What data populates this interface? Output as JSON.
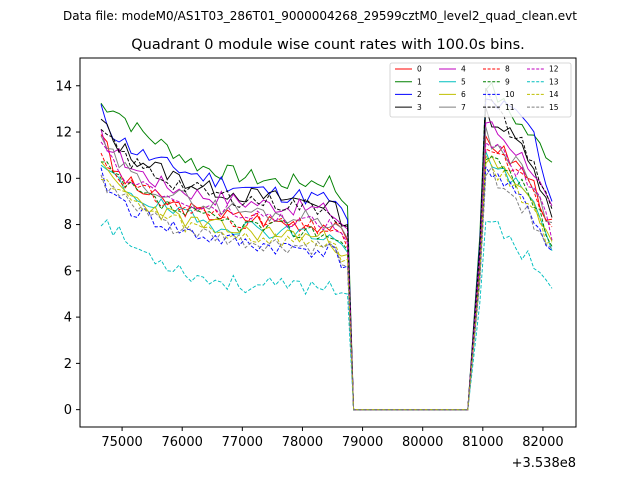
{
  "suptitle": "Data file: modeM0/AS1T03_286T01_9000004268_29599cztM0_level2_quad_clean.evt",
  "title": "Quadrant 0 module wise count rates with 100.0s bins.",
  "chart_data": {
    "type": "line",
    "title": "Quadrant 0 module wise count rates with 100.0s bins.",
    "xlabel": "",
    "ylabel": "",
    "x_offset_label": "+3.538e8",
    "xlim": [
      74300,
      82550
    ],
    "ylim": [
      -0.75,
      15.2
    ],
    "xticks": [
      75000,
      76000,
      77000,
      78000,
      79000,
      80000,
      81000,
      82000
    ],
    "xtick_labels": [
      "75000",
      "76000",
      "77000",
      "78000",
      "79000",
      "80000",
      "81000",
      "82000"
    ],
    "yticks": [
      0,
      2,
      4,
      6,
      8,
      10,
      12,
      14
    ],
    "ytick_labels": [
      "0",
      "2",
      "4",
      "6",
      "8",
      "10",
      "12",
      "14"
    ],
    "grid": false,
    "legend_position": "top-right",
    "bin_size_s": 100,
    "segments_x": {
      "seg1": [
        74650,
        82150
      ],
      "gap": [
        78850,
        80750
      ]
    },
    "series": [
      {
        "name": "0",
        "color": "#ff0000",
        "dashed": false,
        "seed": 3,
        "anchors": [
          [
            74650,
            12.1
          ],
          [
            74850,
            10.4
          ],
          [
            75200,
            9.6
          ],
          [
            75700,
            9.0
          ],
          [
            76300,
            8.5
          ],
          [
            77000,
            8.3
          ],
          [
            77700,
            8.1
          ],
          [
            78450,
            8.0
          ],
          [
            78750,
            7.3
          ],
          [
            78850,
            0
          ],
          [
            80750,
            0
          ],
          [
            80950,
            6.5
          ],
          [
            81000,
            11.9
          ],
          [
            81400,
            11.0
          ],
          [
            81800,
            10.0
          ],
          [
            82150,
            7.9
          ]
        ]
      },
      {
        "name": "1",
        "color": "#008000",
        "dashed": false,
        "seed": 7,
        "anchors": [
          [
            74650,
            13.2
          ],
          [
            74850,
            13.1
          ],
          [
            75200,
            12.2
          ],
          [
            75700,
            11.4
          ],
          [
            76300,
            10.5
          ],
          [
            77000,
            10.1
          ],
          [
            77700,
            9.8
          ],
          [
            78450,
            9.9
          ],
          [
            78750,
            8.8
          ],
          [
            78850,
            0
          ],
          [
            80750,
            0
          ],
          [
            80950,
            7.5
          ],
          [
            81000,
            14.3
          ],
          [
            81400,
            13.0
          ],
          [
            81800,
            11.8
          ],
          [
            82150,
            10.9
          ]
        ]
      },
      {
        "name": "2",
        "color": "#0000ff",
        "dashed": false,
        "seed": 11,
        "anchors": [
          [
            74650,
            12.9
          ],
          [
            74850,
            12.0
          ],
          [
            75200,
            11.2
          ],
          [
            75700,
            10.6
          ],
          [
            76300,
            10.1
          ],
          [
            77000,
            9.6
          ],
          [
            77700,
            9.3
          ],
          [
            78450,
            9.1
          ],
          [
            78750,
            8.2
          ],
          [
            78850,
            0
          ],
          [
            80750,
            0
          ],
          [
            80950,
            7.2
          ],
          [
            81000,
            13.4
          ],
          [
            81400,
            13.0
          ],
          [
            81800,
            12.3
          ],
          [
            82150,
            9.0
          ]
        ]
      },
      {
        "name": "3",
        "color": "#000000",
        "dashed": false,
        "seed": 13,
        "anchors": [
          [
            74650,
            12.5
          ],
          [
            74850,
            11.6
          ],
          [
            75200,
            10.9
          ],
          [
            75700,
            10.3
          ],
          [
            76300,
            9.6
          ],
          [
            77000,
            9.3
          ],
          [
            77700,
            9.1
          ],
          [
            78450,
            8.9
          ],
          [
            78750,
            8.0
          ],
          [
            78850,
            0
          ],
          [
            80750,
            0
          ],
          [
            80950,
            7.0
          ],
          [
            81000,
            12.9
          ],
          [
            81400,
            12.0
          ],
          [
            81800,
            11.0
          ],
          [
            82150,
            8.2
          ]
        ]
      },
      {
        "name": "4",
        "color": "#bf00bf",
        "dashed": false,
        "seed": 17,
        "anchors": [
          [
            74650,
            11.8
          ],
          [
            74850,
            11.2
          ],
          [
            75200,
            10.4
          ],
          [
            75700,
            9.7
          ],
          [
            76300,
            9.3
          ],
          [
            77000,
            9.0
          ],
          [
            77700,
            8.8
          ],
          [
            78450,
            8.6
          ],
          [
            78750,
            7.8
          ],
          [
            78850,
            0
          ],
          [
            80750,
            0
          ],
          [
            80950,
            6.8
          ],
          [
            81000,
            12.6
          ],
          [
            81400,
            11.6
          ],
          [
            81800,
            10.6
          ],
          [
            82150,
            8.5
          ]
        ]
      },
      {
        "name": "5",
        "color": "#00bfbf",
        "dashed": false,
        "seed": 19,
        "anchors": [
          [
            74650,
            10.5
          ],
          [
            74850,
            10.0
          ],
          [
            75200,
            9.3
          ],
          [
            75700,
            8.7
          ],
          [
            76300,
            8.1
          ],
          [
            77000,
            7.9
          ],
          [
            77700,
            7.7
          ],
          [
            78450,
            7.5
          ],
          [
            78750,
            6.8
          ],
          [
            78850,
            0
          ],
          [
            80750,
            0
          ],
          [
            80950,
            6.0
          ],
          [
            81000,
            11.2
          ],
          [
            81400,
            10.0
          ],
          [
            81800,
            9.1
          ],
          [
            82150,
            7.2
          ]
        ]
      },
      {
        "name": "6",
        "color": "#bfbf00",
        "dashed": false,
        "seed": 23,
        "anchors": [
          [
            74650,
            10.4
          ],
          [
            74850,
            9.9
          ],
          [
            75200,
            9.1
          ],
          [
            75700,
            8.5
          ],
          [
            76300,
            8.0
          ],
          [
            77000,
            7.7
          ],
          [
            77700,
            7.6
          ],
          [
            78450,
            7.4
          ],
          [
            78750,
            6.7
          ],
          [
            78850,
            0
          ],
          [
            80750,
            0
          ],
          [
            80950,
            5.9
          ],
          [
            81000,
            11.0
          ],
          [
            81400,
            10.1
          ],
          [
            81800,
            9.0
          ],
          [
            82150,
            7.4
          ]
        ]
      },
      {
        "name": "7",
        "color": "#7f7f7f",
        "dashed": false,
        "seed": 29,
        "anchors": [
          [
            74650,
            11.5
          ],
          [
            74850,
            10.9
          ],
          [
            75200,
            10.0
          ],
          [
            75700,
            9.4
          ],
          [
            76300,
            8.9
          ],
          [
            77000,
            8.6
          ],
          [
            77700,
            8.4
          ],
          [
            78450,
            8.2
          ],
          [
            78750,
            7.4
          ],
          [
            78850,
            0
          ],
          [
            80750,
            0
          ],
          [
            80950,
            6.6
          ],
          [
            81000,
            12.0
          ],
          [
            81400,
            11.0
          ],
          [
            81800,
            10.0
          ],
          [
            82150,
            7.9
          ]
        ]
      },
      {
        "name": "8",
        "color": "#ff0000",
        "dashed": true,
        "seed": 31,
        "anchors": [
          [
            74650,
            11.0
          ],
          [
            74850,
            10.4
          ],
          [
            75200,
            9.6
          ],
          [
            75700,
            9.0
          ],
          [
            76300,
            8.5
          ],
          [
            77000,
            8.2
          ],
          [
            77700,
            8.0
          ],
          [
            78450,
            7.8
          ],
          [
            78750,
            7.0
          ],
          [
            78850,
            0
          ],
          [
            80750,
            0
          ],
          [
            80950,
            6.3
          ],
          [
            81000,
            11.6
          ],
          [
            81400,
            10.6
          ],
          [
            81800,
            9.6
          ],
          [
            82150,
            7.6
          ]
        ]
      },
      {
        "name": "9",
        "color": "#008000",
        "dashed": true,
        "seed": 37,
        "anchors": [
          [
            74650,
            10.6
          ],
          [
            74850,
            10.1
          ],
          [
            75200,
            9.4
          ],
          [
            75700,
            8.8
          ],
          [
            76300,
            8.3
          ],
          [
            77000,
            8.0
          ],
          [
            77700,
            7.8
          ],
          [
            78450,
            7.6
          ],
          [
            78750,
            6.9
          ],
          [
            78850,
            0
          ],
          [
            80750,
            0
          ],
          [
            80950,
            6.1
          ],
          [
            81000,
            11.3
          ],
          [
            81400,
            10.3
          ],
          [
            81800,
            9.3
          ],
          [
            82150,
            7.2
          ]
        ]
      },
      {
        "name": "10",
        "color": "#0000ff",
        "dashed": true,
        "seed": 41,
        "anchors": [
          [
            74650,
            10.1
          ],
          [
            74850,
            9.3
          ],
          [
            75200,
            8.6
          ],
          [
            75700,
            8.0
          ],
          [
            76300,
            7.5
          ],
          [
            77000,
            7.2
          ],
          [
            77700,
            7.0
          ],
          [
            78450,
            6.9
          ],
          [
            78750,
            6.2
          ],
          [
            78850,
            0
          ],
          [
            80750,
            0
          ],
          [
            80950,
            5.6
          ],
          [
            81000,
            10.6
          ],
          [
            81400,
            9.6
          ],
          [
            81800,
            8.6
          ],
          [
            82150,
            6.8
          ]
        ]
      },
      {
        "name": "11",
        "color": "#000000",
        "dashed": true,
        "seed": 43,
        "anchors": [
          [
            74650,
            12.0
          ],
          [
            74850,
            11.4
          ],
          [
            75200,
            10.6
          ],
          [
            75700,
            10.0
          ],
          [
            76300,
            9.4
          ],
          [
            77000,
            9.1
          ],
          [
            77700,
            8.9
          ],
          [
            78450,
            8.7
          ],
          [
            78750,
            7.9
          ],
          [
            78850,
            0
          ],
          [
            80750,
            0
          ],
          [
            80950,
            6.9
          ],
          [
            81000,
            13.9
          ],
          [
            81400,
            12.2
          ],
          [
            81800,
            11.0
          ],
          [
            82150,
            8.5
          ]
        ]
      },
      {
        "name": "12",
        "color": "#bf00bf",
        "dashed": true,
        "seed": 47,
        "anchors": [
          [
            74650,
            11.2
          ],
          [
            74850,
            10.6
          ],
          [
            75200,
            9.9
          ],
          [
            75700,
            9.2
          ],
          [
            76300,
            8.7
          ],
          [
            77000,
            8.4
          ],
          [
            77700,
            8.2
          ],
          [
            78450,
            8.0
          ],
          [
            78750,
            7.2
          ],
          [
            78850,
            0
          ],
          [
            80750,
            0
          ],
          [
            80950,
            6.4
          ],
          [
            81000,
            11.8
          ],
          [
            81400,
            10.8
          ],
          [
            81800,
            9.8
          ],
          [
            82150,
            7.7
          ]
        ]
      },
      {
        "name": "13",
        "color": "#00bfbf",
        "dashed": true,
        "seed": 53,
        "anchors": [
          [
            74650,
            8.3
          ],
          [
            74850,
            7.8
          ],
          [
            75200,
            7.0
          ],
          [
            75700,
            6.4
          ],
          [
            76300,
            5.7
          ],
          [
            77000,
            5.4
          ],
          [
            77700,
            5.3
          ],
          [
            78450,
            5.4
          ],
          [
            78750,
            5.0
          ],
          [
            78850,
            0
          ],
          [
            80750,
            0
          ],
          [
            80950,
            4.6
          ],
          [
            81000,
            8.6
          ],
          [
            81400,
            7.3
          ],
          [
            81800,
            6.6
          ],
          [
            82150,
            5.3
          ]
        ]
      },
      {
        "name": "14",
        "color": "#bfbf00",
        "dashed": true,
        "seed": 59,
        "anchors": [
          [
            74650,
            10.3
          ],
          [
            74850,
            9.6
          ],
          [
            75200,
            8.9
          ],
          [
            75700,
            8.3
          ],
          [
            76300,
            7.8
          ],
          [
            77000,
            7.5
          ],
          [
            77700,
            7.3
          ],
          [
            78450,
            7.2
          ],
          [
            78750,
            6.5
          ],
          [
            78850,
            0
          ],
          [
            80750,
            0
          ],
          [
            80950,
            5.8
          ],
          [
            81000,
            10.8
          ],
          [
            81400,
            9.9
          ],
          [
            81800,
            8.9
          ],
          [
            82150,
            7.0
          ]
        ]
      },
      {
        "name": "15",
        "color": "#7f7f7f",
        "dashed": true,
        "seed": 61,
        "anchors": [
          [
            74650,
            10.0
          ],
          [
            74850,
            9.4
          ],
          [
            75200,
            8.7
          ],
          [
            75700,
            8.1
          ],
          [
            76300,
            7.5
          ],
          [
            77000,
            7.2
          ],
          [
            77700,
            7.0
          ],
          [
            78450,
            6.9
          ],
          [
            78750,
            6.2
          ],
          [
            78850,
            0
          ],
          [
            80750,
            0
          ],
          [
            80950,
            5.5
          ],
          [
            81000,
            10.5
          ],
          [
            81400,
            9.5
          ],
          [
            81800,
            8.4
          ],
          [
            82150,
            6.6
          ]
        ]
      }
    ]
  }
}
